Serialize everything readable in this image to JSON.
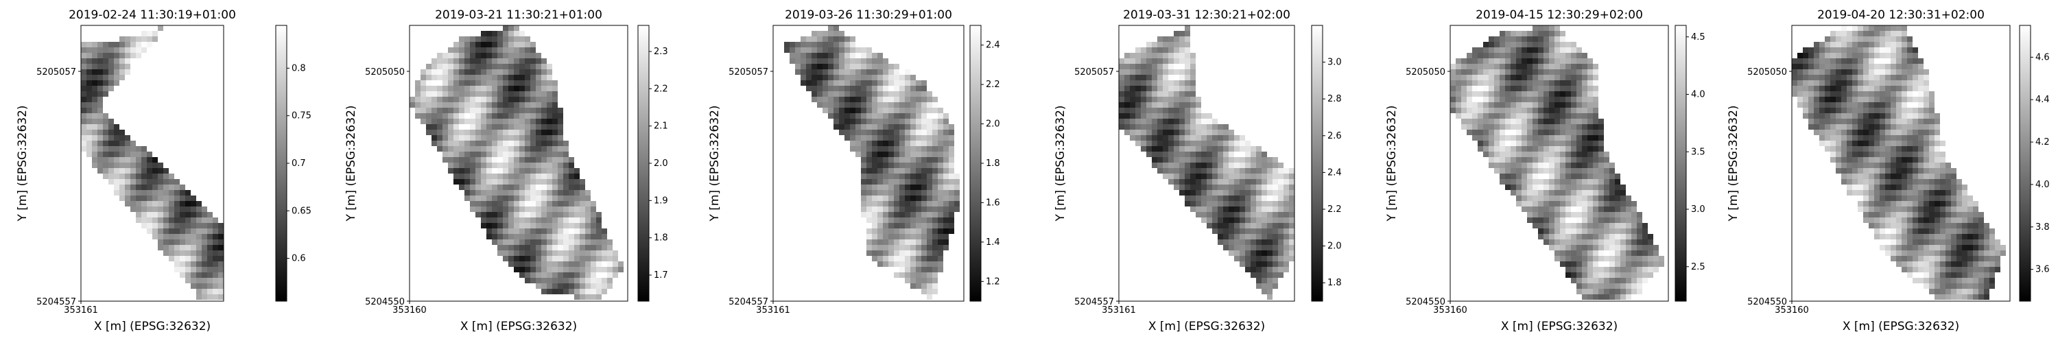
{
  "figure": {
    "background": "#ffffff"
  },
  "chart_data": [
    {
      "type": "heatmap",
      "title": "2019-02-24 11:30:19+01:00",
      "xlabel": "X [m] (EPSG:32632)",
      "ylabel": "Y [m] (EPSG:32632)",
      "xticks": [
        "353161"
      ],
      "yticks": [
        "5205057",
        "5204557"
      ],
      "colorbar": {
        "ticks": [
          0.6,
          0.65,
          0.7,
          0.75,
          0.8
        ],
        "range": [
          0.555,
          0.845
        ],
        "cmap": "gray"
      },
      "mask": [
        [
          0.6,
          0.0
        ],
        [
          0.12,
          0.3
        ],
        [
          0.6,
          0.52
        ],
        [
          1.0,
          0.72
        ],
        [
          1.0,
          1.0
        ],
        [
          0.84,
          1.0
        ],
        [
          0.0,
          0.45
        ],
        [
          0.0,
          0.07
        ],
        [
          0.28,
          0.05
        ]
      ]
    },
    {
      "type": "heatmap",
      "title": "2019-03-21 11:30:21+01:00",
      "xlabel": "X [m] (EPSG:32632)",
      "ylabel": "Y [m] (EPSG:32632)",
      "xticks": [
        "353160"
      ],
      "yticks": [
        "5205050",
        "5204550"
      ],
      "colorbar": {
        "ticks": [
          1.7,
          1.8,
          1.9,
          2.0,
          2.1,
          2.2,
          2.3
        ],
        "range": [
          1.63,
          2.37
        ],
        "cmap": "gray"
      },
      "mask": [
        [
          0.06,
          0.17
        ],
        [
          0.22,
          0.05
        ],
        [
          0.5,
          0.0
        ],
        [
          0.67,
          0.15
        ],
        [
          0.74,
          0.45
        ],
        [
          1.0,
          0.88
        ],
        [
          0.9,
          1.0
        ],
        [
          0.62,
          0.98
        ],
        [
          0.42,
          0.84
        ],
        [
          0.0,
          0.28
        ]
      ]
    },
    {
      "type": "heatmap",
      "title": "2019-03-26 11:30:29+01:00",
      "xlabel": "",
      "ylabel": "Y [m] (EPSG:32632)",
      "xticks": [
        "353161"
      ],
      "yticks": [
        "5205057",
        "5204557"
      ],
      "colorbar": {
        "ticks": [
          1.2,
          1.4,
          1.6,
          1.8,
          2.0,
          2.2,
          2.4
        ],
        "range": [
          1.1,
          2.5
        ],
        "cmap": "gray"
      },
      "mask": [
        [
          0.06,
          0.07
        ],
        [
          0.32,
          0.0
        ],
        [
          0.8,
          0.2
        ],
        [
          0.96,
          0.36
        ],
        [
          1.0,
          0.64
        ],
        [
          0.86,
          1.0
        ],
        [
          0.5,
          0.84
        ],
        [
          0.46,
          0.48
        ],
        [
          0.14,
          0.2
        ]
      ]
    },
    {
      "type": "heatmap",
      "title": "2019-03-31 12:30:21+02:00",
      "xlabel": "X [m] (EPSG:32632)",
      "ylabel": "Y [m] (EPSG:32632)",
      "xticks": [
        "353161"
      ],
      "yticks": [
        "5205057",
        "5204557"
      ],
      "colorbar": {
        "ticks": [
          1.8,
          2.0,
          2.2,
          2.4,
          2.6,
          2.8,
          3.0
        ],
        "range": [
          1.7,
          3.2
        ],
        "cmap": "gray"
      },
      "mask": [
        [
          0.0,
          0.12
        ],
        [
          0.4,
          0.0
        ],
        [
          0.46,
          0.3
        ],
        [
          1.0,
          0.53
        ],
        [
          1.0,
          0.84
        ],
        [
          0.86,
          1.0
        ],
        [
          0.0,
          0.36
        ]
      ]
    },
    {
      "type": "heatmap",
      "title": "2019-04-15 12:30:29+02:00",
      "xlabel": "X [m] (EPSG:32632)",
      "ylabel": "Y [m] (EPSG:32632)",
      "xticks": [
        "353160"
      ],
      "yticks": [
        "5205050",
        "5204550"
      ],
      "colorbar": {
        "ticks": [
          2.5,
          3.0,
          3.5,
          4.0,
          4.5
        ],
        "range": [
          2.2,
          4.6
        ],
        "cmap": "gray"
      },
      "mask": [
        [
          0.0,
          0.15
        ],
        [
          0.25,
          0.02
        ],
        [
          0.5,
          0.0
        ],
        [
          0.68,
          0.15
        ],
        [
          0.72,
          0.44
        ],
        [
          1.0,
          0.86
        ],
        [
          0.86,
          1.0
        ],
        [
          0.62,
          1.0
        ],
        [
          0.45,
          0.8
        ],
        [
          0.0,
          0.3
        ]
      ]
    },
    {
      "type": "heatmap",
      "title": "2019-04-20 12:30:31+02:00",
      "xlabel": "X [m] (EPSG:32632)",
      "ylabel": "Y [m] (EPSG:32632)",
      "xticks": [
        "353160"
      ],
      "yticks": [
        "5205050",
        "5204550"
      ],
      "colorbar": {
        "ticks": [
          3.6,
          3.8,
          4.0,
          4.2,
          4.4,
          4.6
        ],
        "range": [
          3.45,
          4.75
        ],
        "cmap": "gray"
      },
      "mask": [
        [
          0.0,
          0.12
        ],
        [
          0.25,
          0.0
        ],
        [
          0.52,
          0.0
        ],
        [
          0.64,
          0.18
        ],
        [
          0.72,
          0.48
        ],
        [
          1.0,
          0.82
        ],
        [
          0.92,
          1.0
        ],
        [
          0.68,
          1.0
        ],
        [
          0.44,
          0.84
        ],
        [
          0.0,
          0.25
        ]
      ]
    }
  ]
}
